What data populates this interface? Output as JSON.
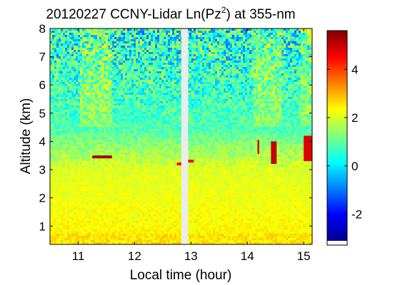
{
  "chart_data": {
    "type": "heatmap",
    "title_parts": {
      "prefix": "20120227 CCNY-Lidar Ln(Pz",
      "superscript": "2",
      "suffix": ") at 355-nm"
    },
    "xlabel": "Local time (hour)",
    "ylabel": "Altitude (km)",
    "xlim": [
      10.5,
      15.15
    ],
    "ylim": [
      0.35,
      8.0
    ],
    "x_ticks": [
      11,
      12,
      13,
      14,
      15
    ],
    "y_ticks": [
      1,
      2,
      3,
      4,
      5,
      6,
      7,
      8
    ],
    "colorbar": {
      "range": [
        -3.1,
        5.6
      ],
      "ticks": [
        -2,
        0,
        2,
        4
      ],
      "colormap": "jet",
      "stops": [
        "#00008f",
        "#0000ff",
        "#00ffff",
        "#ffff00",
        "#ff0000",
        "#800000"
      ]
    },
    "data_gap": {
      "x_start": 12.83,
      "x_end": 12.95
    },
    "features": [
      {
        "name": "aloft-layer",
        "x_start": 11.25,
        "x_end": 11.6,
        "y": 3.45,
        "value": 5.3
      },
      {
        "name": "layer-segment",
        "x_start": 12.75,
        "x_end": 12.83,
        "y": 3.2,
        "value": 4.5
      },
      {
        "name": "layer-segment",
        "x_start": 12.95,
        "x_end": 13.05,
        "y": 3.3,
        "value": 4.5
      },
      {
        "name": "cloud-column",
        "x_start": 14.18,
        "x_end": 14.21,
        "y_bottom": 3.55,
        "y_top": 4.05,
        "value": 4.8
      },
      {
        "name": "cloud-column",
        "x_start": 14.42,
        "x_end": 14.52,
        "y_bottom": 3.2,
        "y_top": 4.0,
        "value": 5.0
      },
      {
        "name": "cloud-column",
        "x_start": 15.0,
        "x_end": 15.15,
        "y_bottom": 3.3,
        "y_top": 4.2,
        "value": 4.8
      }
    ],
    "regions": [
      {
        "name": "surface-layer",
        "y_range": [
          0.35,
          3.2
        ],
        "typical_value": 2.3
      },
      {
        "name": "transition",
        "y_range": [
          3.2,
          4.2
        ],
        "typical_value": 1.3
      },
      {
        "name": "free-troposphere",
        "y_range": [
          4.2,
          8.0
        ],
        "typical_value": 0.6
      }
    ]
  }
}
